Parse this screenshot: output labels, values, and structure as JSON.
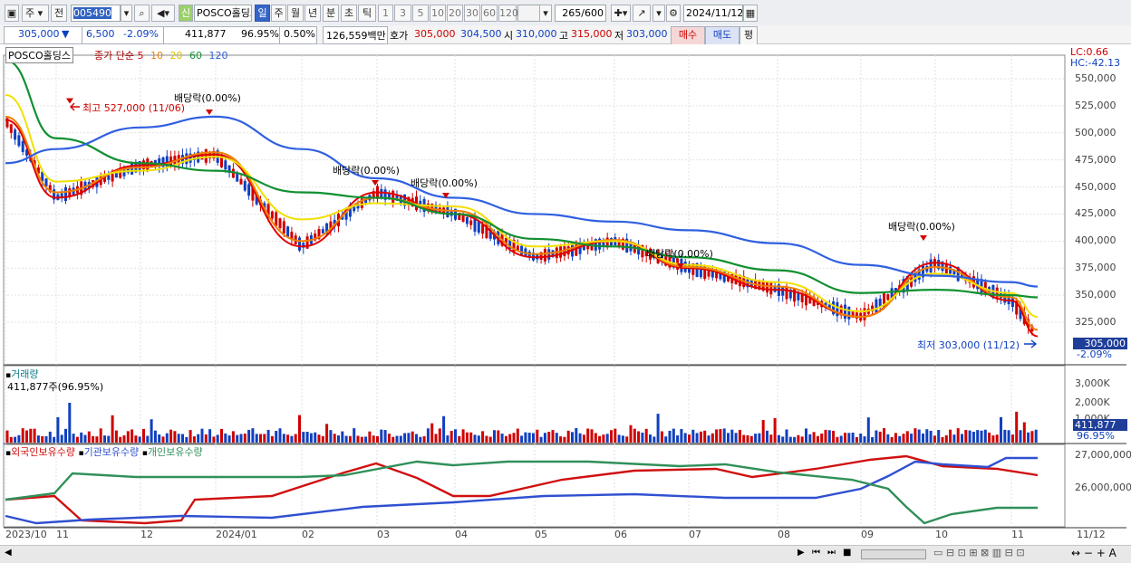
{
  "toolbar": {
    "period_unit": "주",
    "prev_label": "전",
    "code": "005490",
    "stock_name": "POSCO홀딩스",
    "new_badge": "신",
    "tabs": [
      "일",
      "주",
      "월",
      "년",
      "분",
      "초",
      "틱"
    ],
    "active_tab": "일",
    "intervals": [
      "1",
      "3",
      "5",
      "10",
      "20",
      "30",
      "60",
      "120"
    ],
    "count_value": "265",
    "count_total": "/600",
    "date": "2024/11/12"
  },
  "quote": {
    "price": "305,000",
    "change": "6,500",
    "change_pct": "-2.09%",
    "volume": "411,877",
    "volume_ratio": "96.95%",
    "turnover": "0.50%",
    "amount": "126,559백만",
    "hoga_label": "호가",
    "ask": "305,000",
    "bid": "304,500",
    "open_label": "시",
    "open": "310,000",
    "high_label": "고",
    "high": "315,000",
    "low_label": "저",
    "low": "303,000",
    "buy_label": "매수",
    "sell_label": "매도",
    "eval_label": "평"
  },
  "price_panel": {
    "stock_label": "POSCO홀딩스",
    "ma_title": "종가 단순",
    "ma_periods": [
      "5",
      "10",
      "20",
      "60",
      "120"
    ],
    "lc": "LC:0.66",
    "hc": "HC:-42.13",
    "y_ticks": [
      "550,000",
      "525,000",
      "500,000",
      "475,000",
      "450,000",
      "425,000",
      "400,000",
      "375,000",
      "350,000",
      "325,000"
    ],
    "high_annot": "최고 527,000 (11/06)",
    "low_annot": "최저 303,000 (11/12)",
    "dividend_labels": [
      "배당락(0.00%)",
      "배당락(0.00%)",
      "배당락(0.00%)",
      "배당락(0.00%)",
      "배당락(0.00%)"
    ],
    "current_price": "305,000",
    "current_change": "-2.09%"
  },
  "volume_panel": {
    "title": "거래량",
    "subtitle": "411,877주(96.95%)",
    "y_ticks": [
      "3,000K",
      "2,000K",
      "1,000K"
    ],
    "current": "411,877",
    "current_pct": "96.95%"
  },
  "holder_panel": {
    "series": [
      "외국인보유수량",
      "기관보유수량",
      "개인보유수량"
    ],
    "y_ticks": [
      "27,000,000",
      "26,000,000"
    ]
  },
  "x_axis": [
    "2023/10",
    "11",
    "12",
    "2024/01",
    "02",
    "03",
    "04",
    "05",
    "06",
    "07",
    "08",
    "09",
    "10",
    "11",
    "11/12"
  ],
  "colors": {
    "ma5": "#e00000",
    "ma10": "#f08000",
    "ma20": "#f0e000",
    "ma60": "#109030",
    "ma120": "#3060e0",
    "up": "#d00000",
    "down": "#1040c0",
    "foreign": "#d01010",
    "institution": "#3050d0",
    "individual": "#30905a"
  },
  "chart_data": {
    "type": "line",
    "title": "POSCO홀딩스",
    "x": [
      "2023/10",
      "11",
      "12",
      "2024/01",
      "02",
      "03",
      "04",
      "05",
      "06",
      "07",
      "08",
      "09",
      "10",
      "11",
      "11/12"
    ],
    "series": [
      {
        "name": "5",
        "values": [
          512000,
          440000,
          470000,
          480000,
          395000,
          445000,
          425000,
          385000,
          400000,
          375000,
          355000,
          330000,
          380000,
          345000,
          312000
        ]
      },
      {
        "name": "10",
        "values": [
          515000,
          445000,
          468000,
          482000,
          400000,
          440000,
          428000,
          388000,
          401000,
          376000,
          358000,
          330000,
          376000,
          348000,
          318000
        ]
      },
      {
        "name": "20",
        "values": [
          535000,
          455000,
          465000,
          478000,
          420000,
          435000,
          432000,
          395000,
          400000,
          378000,
          362000,
          335000,
          370000,
          352000,
          330000
        ]
      },
      {
        "name": "60",
        "values": [
          567000,
          495000,
          472000,
          465000,
          445000,
          440000,
          425000,
          402000,
          395000,
          385000,
          373000,
          352000,
          355000,
          350000,
          348000
        ]
      },
      {
        "name": "120",
        "values": [
          472000,
          485000,
          505000,
          515000,
          485000,
          458000,
          440000,
          425000,
          418000,
          410000,
          398000,
          378000,
          368000,
          362000,
          358000
        ]
      }
    ],
    "ylim": [
      300000,
      560000
    ],
    "high": {
      "value": 527000,
      "date": "11/06"
    },
    "low": {
      "value": 303000,
      "date": "11/12"
    }
  }
}
